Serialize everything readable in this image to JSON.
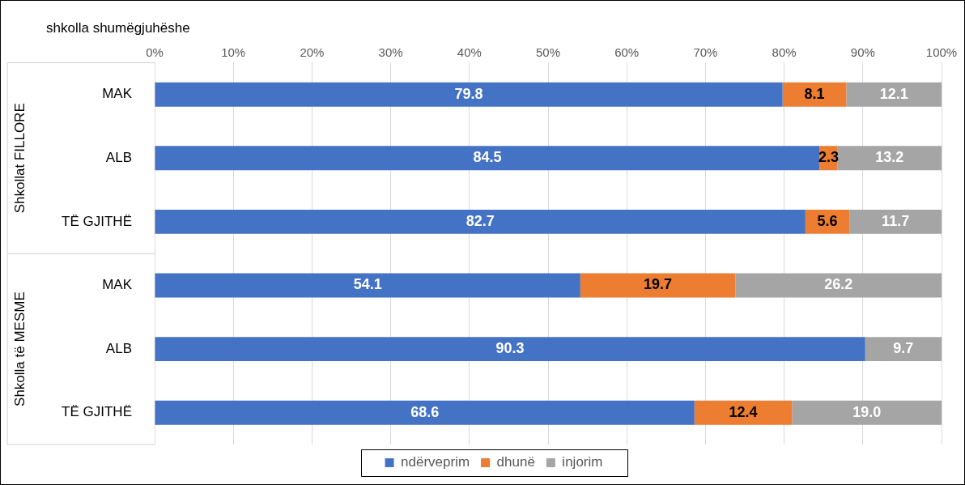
{
  "chart_data": {
    "type": "bar",
    "orientation": "horizontal",
    "stacked": true,
    "title": "shkolla shumëgjuhëshe",
    "categories": [
      "MAK",
      "ALB",
      "TË GJITHË",
      "MAK",
      "ALB",
      "TË GJITHË"
    ],
    "series": [
      {
        "name": "ndërveprim",
        "color": "#4472c4",
        "values": [
          79.8,
          84.5,
          82.7,
          54.1,
          90.3,
          68.6
        ],
        "value_labels": [
          "79.8",
          "84.5",
          "82.7",
          "54.1",
          "90.3",
          "68.6"
        ]
      },
      {
        "name": "dhunë",
        "color": "#ed7d31",
        "values": [
          8.1,
          2.3,
          5.6,
          19.7,
          null,
          12.4
        ],
        "value_labels": [
          "8.1",
          "2.3",
          "5.6",
          "19.7",
          null,
          "12.4"
        ]
      },
      {
        "name": "injorim",
        "color": "#a5a5a5",
        "values": [
          12.1,
          13.2,
          11.7,
          26.2,
          9.7,
          19.0
        ],
        "value_labels": [
          "12.1",
          "13.2",
          "11.7",
          "26.2",
          "9.7",
          "19.0"
        ]
      }
    ],
    "xlim": [
      0,
      100
    ],
    "xticks": [
      {
        "value": 0,
        "label": "0%"
      },
      {
        "value": 10,
        "label": "10%"
      },
      {
        "value": 20,
        "label": "20%"
      },
      {
        "value": 30,
        "label": "30%"
      },
      {
        "value": 40,
        "label": "40%"
      },
      {
        "value": 50,
        "label": "50%"
      },
      {
        "value": 60,
        "label": "60%"
      },
      {
        "value": 70,
        "label": "70%"
      },
      {
        "value": 80,
        "label": "80%"
      },
      {
        "value": 90,
        "label": "90%"
      },
      {
        "value": 100,
        "label": "100%"
      }
    ],
    "annotations": [
      "Shkollat FILLORE",
      "Shkolla të MESME"
    ],
    "grid": "x",
    "legend": "bottom"
  }
}
